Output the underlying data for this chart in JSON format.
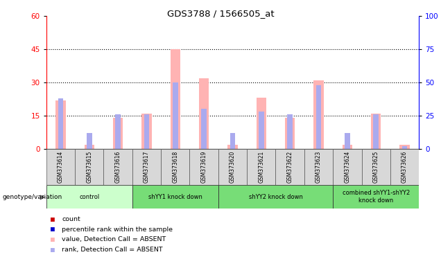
{
  "title": "GDS3788 / 1566505_at",
  "samples": [
    "GSM373614",
    "GSM373615",
    "GSM373616",
    "GSM373617",
    "GSM373618",
    "GSM373619",
    "GSM373620",
    "GSM373621",
    "GSM373622",
    "GSM373623",
    "GSM373624",
    "GSM373625",
    "GSM373626"
  ],
  "absent_value_bars": [
    22,
    2,
    14,
    16,
    45,
    32,
    2,
    23,
    14,
    31,
    2,
    16,
    2
  ],
  "rank_values_pct": [
    38,
    12,
    26,
    26,
    50,
    30,
    12,
    28,
    26,
    48,
    12,
    26,
    2
  ],
  "ylim_left": [
    0,
    60
  ],
  "ylim_right": [
    0,
    100
  ],
  "yticks_left": [
    0,
    15,
    30,
    45,
    60
  ],
  "yticks_right": [
    0,
    25,
    50,
    75,
    100
  ],
  "groups": [
    {
      "label": "control",
      "start": 0,
      "end": 3,
      "color": "#ccffcc"
    },
    {
      "label": "shYY1 knock down",
      "start": 3,
      "end": 6,
      "color": "#77dd77"
    },
    {
      "label": "shYY2 knock down",
      "start": 6,
      "end": 10,
      "color": "#77dd77"
    },
    {
      "label": "combined shYY1-shYY2\nknock down",
      "start": 10,
      "end": 13,
      "color": "#77dd77"
    }
  ],
  "red_bar_color": "#ffb3b3",
  "blue_bar_color": "#aaaaee",
  "count_color": "#cc0000",
  "rank_color": "#0000cc",
  "bg_color": "#d8d8d8",
  "genotype_label": "genotype/variation",
  "legend_labels": [
    "count",
    "percentile rank within the sample",
    "value, Detection Call = ABSENT",
    "rank, Detection Call = ABSENT"
  ],
  "legend_colors": [
    "#cc0000",
    "#0000cc",
    "#ffb3b3",
    "#aaaaee"
  ]
}
